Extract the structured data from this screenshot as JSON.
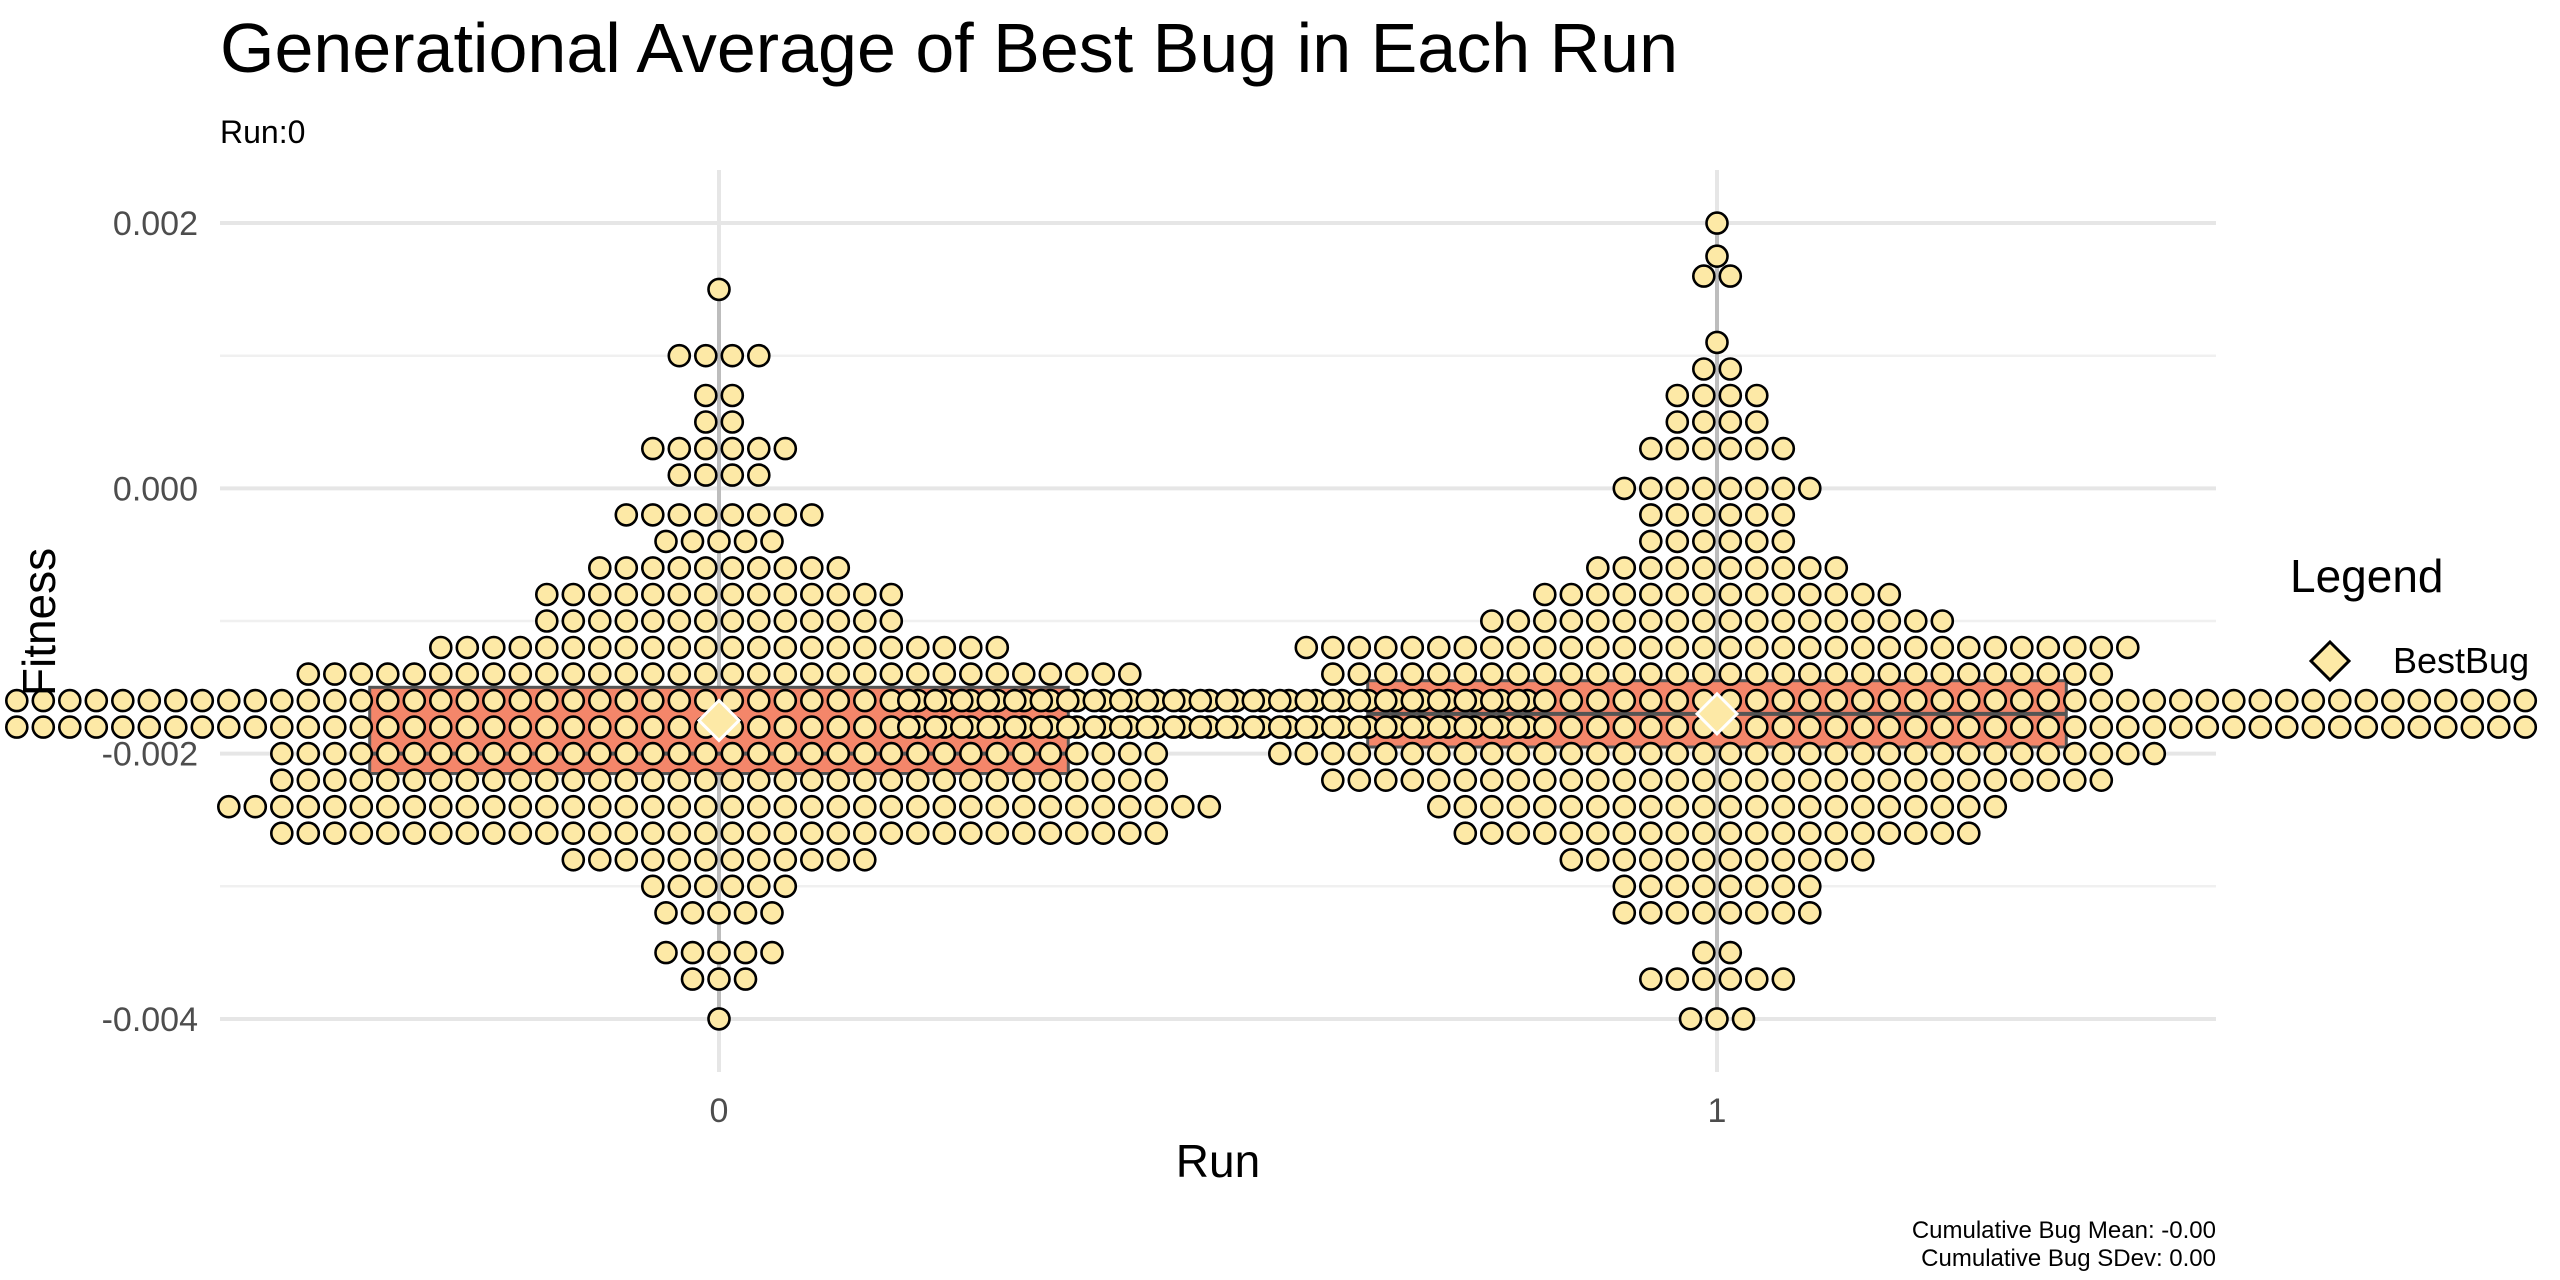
{
  "chart_data": {
    "type": "dotplot",
    "title": "Generational Average of Best Bug in Each Run",
    "subtitle": "Run:0",
    "xlabel": "Run",
    "ylabel": "Fitness",
    "categories": [
      "0",
      "1"
    ],
    "ylim": [
      -0.0044,
      0.0024
    ],
    "yticks": [
      0.002,
      0.0,
      -0.002,
      -0.004
    ],
    "ytick_labels": [
      "0.002",
      "0.000",
      "-0.002",
      "-0.004"
    ],
    "grid": true,
    "legend": {
      "title": "Legend",
      "position": "right",
      "entries": [
        {
          "name": "BestBug",
          "shape": "diamond",
          "fill": "#fde9a6"
        }
      ]
    },
    "dot_style": {
      "fill": "#fde9a6",
      "stroke": "#000000"
    },
    "box_style": {
      "fill": "#f4866a",
      "stroke": "#555555"
    },
    "boxplots": [
      {
        "run": "0",
        "min": -0.004,
        "q1": -0.00215,
        "median": -0.002,
        "q3": -0.0015,
        "max": 0.0015
      },
      {
        "run": "1",
        "min": -0.004,
        "q1": -0.00195,
        "median": -0.0017,
        "q3": -0.00145,
        "max": 0.002
      }
    ],
    "series": [
      {
        "name": "BestBug",
        "run": "0",
        "mean": -0.00175,
        "bins": [
          {
            "y": 0.0015,
            "count": 1
          },
          {
            "y": 0.001,
            "count": 4
          },
          {
            "y": 0.0007,
            "count": 2
          },
          {
            "y": 0.0005,
            "count": 2
          },
          {
            "y": 0.0003,
            "count": 6
          },
          {
            "y": 0.0001,
            "count": 4
          },
          {
            "y": -0.0002,
            "count": 8
          },
          {
            "y": -0.0004,
            "count": 5
          },
          {
            "y": -0.0006,
            "count": 10
          },
          {
            "y": -0.0008,
            "count": 14
          },
          {
            "y": -0.001,
            "count": 14
          },
          {
            "y": -0.0012,
            "count": 22
          },
          {
            "y": -0.0014,
            "count": 32
          },
          {
            "y": -0.0016,
            "count": 62
          },
          {
            "y": -0.0018,
            "count": 62
          },
          {
            "y": -0.002,
            "count": 34
          },
          {
            "y": -0.0022,
            "count": 34
          },
          {
            "y": -0.0024,
            "count": 38
          },
          {
            "y": -0.0026,
            "count": 34
          },
          {
            "y": -0.0028,
            "count": 12
          },
          {
            "y": -0.003,
            "count": 6
          },
          {
            "y": -0.0032,
            "count": 5
          },
          {
            "y": -0.0035,
            "count": 5
          },
          {
            "y": -0.0037,
            "count": 3
          },
          {
            "y": -0.004,
            "count": 1
          }
        ]
      },
      {
        "name": "BestBug",
        "run": "1",
        "mean": -0.0017,
        "bins": [
          {
            "y": 0.002,
            "count": 1
          },
          {
            "y": 0.00175,
            "count": 1
          },
          {
            "y": 0.0016,
            "count": 2
          },
          {
            "y": 0.0011,
            "count": 1
          },
          {
            "y": 0.0009,
            "count": 2
          },
          {
            "y": 0.0007,
            "count": 4
          },
          {
            "y": 0.0005,
            "count": 4
          },
          {
            "y": 0.0003,
            "count": 6
          },
          {
            "y": 0.0,
            "count": 8
          },
          {
            "y": -0.0002,
            "count": 6
          },
          {
            "y": -0.0004,
            "count": 6
          },
          {
            "y": -0.0006,
            "count": 10
          },
          {
            "y": -0.0008,
            "count": 14
          },
          {
            "y": -0.001,
            "count": 18
          },
          {
            "y": -0.0012,
            "count": 32
          },
          {
            "y": -0.0014,
            "count": 30
          },
          {
            "y": -0.0016,
            "count": 62
          },
          {
            "y": -0.0018,
            "count": 62
          },
          {
            "y": -0.002,
            "count": 34
          },
          {
            "y": -0.0022,
            "count": 30
          },
          {
            "y": -0.0024,
            "count": 22
          },
          {
            "y": -0.0026,
            "count": 20
          },
          {
            "y": -0.0028,
            "count": 12
          },
          {
            "y": -0.003,
            "count": 8
          },
          {
            "y": -0.0032,
            "count": 8
          },
          {
            "y": -0.0035,
            "count": 2
          },
          {
            "y": -0.0037,
            "count": 6
          },
          {
            "y": -0.004,
            "count": 3
          }
        ]
      }
    ],
    "caption_lines": [
      "Cumulative Bug Mean: -0.00",
      "Cumulative Bug SDev: 0.00"
    ]
  }
}
